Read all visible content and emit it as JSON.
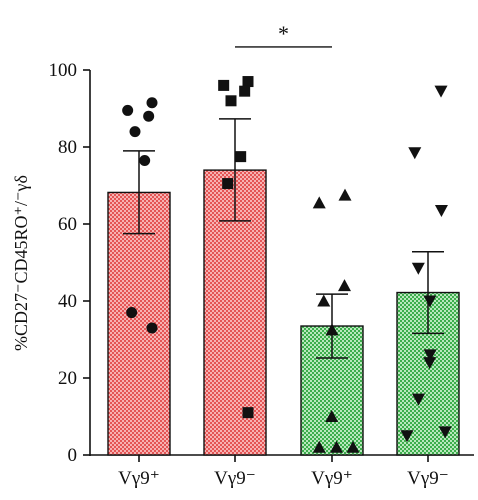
{
  "chart_data": {
    "type": "bar",
    "categories": [
      "Vγ9⁺",
      "Vγ9⁻",
      "Vγ9⁺",
      "Vγ9⁻"
    ],
    "ylabel": "%CD27⁻CD45RO⁺/⁻γδ",
    "ylim": [
      0,
      100
    ],
    "yticks": [
      0,
      20,
      40,
      60,
      80,
      100
    ],
    "grid": false,
    "bars": [
      {
        "mean": 68.2,
        "sem_upper": 79.0,
        "sem_lower": 57.5,
        "color": "#e85a5a",
        "fill": "#f6a7a7",
        "marker": "circle",
        "points": [
          91.5,
          89.5,
          88.0,
          84.0,
          76.5,
          37.0,
          33.0
        ]
      },
      {
        "mean": 74.0,
        "sem_upper": 87.3,
        "sem_lower": 60.8,
        "color": "#e85a5a",
        "fill": "#f6a7a7",
        "marker": "square",
        "points": [
          97.0,
          96.0,
          94.5,
          92.0,
          77.5,
          70.5,
          11.0
        ]
      },
      {
        "mean": 33.5,
        "sem_upper": 41.8,
        "sem_lower": 25.2,
        "color": "#3fb24f",
        "fill": "#a5dfa9",
        "marker": "triangle-up",
        "points": [
          67.5,
          65.5,
          44.0,
          40.0,
          32.5,
          10.0,
          2.0,
          2.0,
          2.0
        ]
      },
      {
        "mean": 42.2,
        "sem_upper": 52.8,
        "sem_lower": 31.6,
        "color": "#3fb24f",
        "fill": "#a5dfa9",
        "marker": "triangle-down",
        "points": [
          94.5,
          78.5,
          63.5,
          48.5,
          40.0,
          26.0,
          24.0,
          14.5,
          6.0,
          5.0
        ]
      }
    ],
    "annotations": [
      {
        "text": "*",
        "from_bar": 1,
        "to_bar": 2,
        "y": 106.0
      }
    ]
  }
}
